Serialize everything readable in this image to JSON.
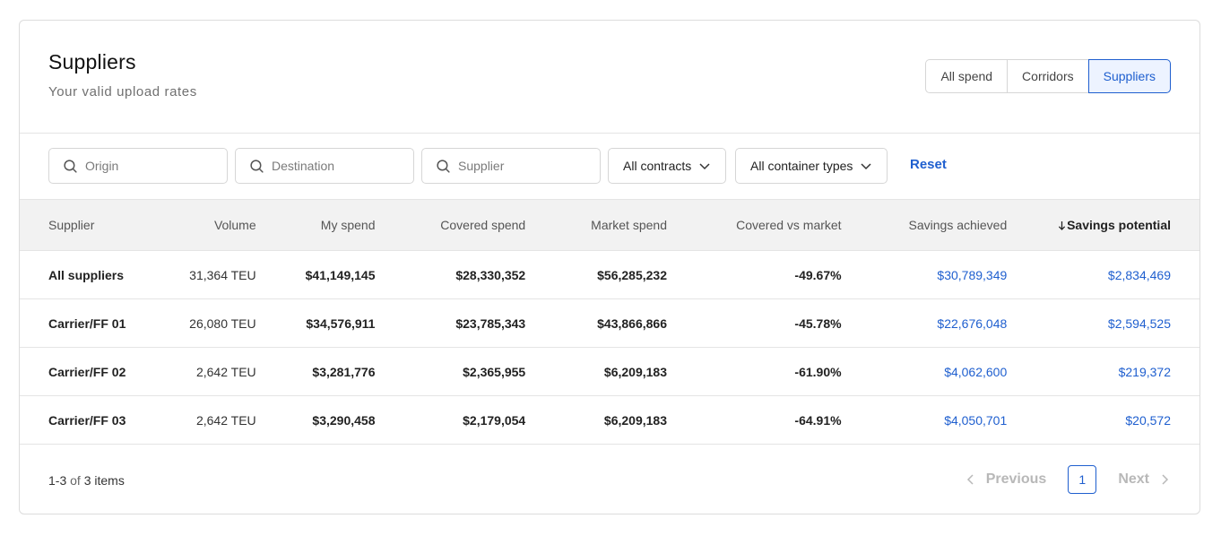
{
  "header": {
    "title": "Suppliers",
    "subtitle": "Your valid upload rates",
    "views": [
      "All spend",
      "Corridors",
      "Suppliers"
    ],
    "active_view": "Suppliers"
  },
  "filters": {
    "origin_placeholder": "Origin",
    "destination_placeholder": "Destination",
    "supplier_placeholder": "Supplier",
    "contracts": "All contracts",
    "container_types": "All container types",
    "reset": "Reset"
  },
  "table": {
    "columns": [
      "Supplier",
      "Volume",
      "My spend",
      "Covered spend",
      "Market spend",
      "Covered vs market",
      "Savings achieved",
      "Savings potential"
    ],
    "sorted_column": "Savings potential",
    "rows": [
      [
        "All suppliers",
        "31,364 TEU",
        "$41,149,145",
        "$28,330,352",
        "$56,285,232",
        "-49.67%",
        "$30,789,349",
        "$2,834,469"
      ],
      [
        "Carrier/FF 01",
        "26,080 TEU",
        "$34,576,911",
        "$23,785,343",
        "$43,866,866",
        "-45.78%",
        "$22,676,048",
        "$2,594,525"
      ],
      [
        "Carrier/FF 02",
        "2,642 TEU",
        "$3,281,776",
        "$2,365,955",
        "$6,209,183",
        "-61.90%",
        "$4,062,600",
        "$219,372"
      ],
      [
        "Carrier/FF 03",
        "2,642 TEU",
        "$3,290,458",
        "$2,179,054",
        "$6,209,183",
        "-64.91%",
        "$4,050,701",
        "$20,572"
      ]
    ]
  },
  "footer": {
    "range": "1-3",
    "of": "of",
    "total": "3 items",
    "previous": "Previous",
    "current_page": "1",
    "next": "Next"
  },
  "colors": {
    "accent": "#1f5fcf",
    "header_bg": "#f2f2f2",
    "border": "#e4e4e4"
  }
}
